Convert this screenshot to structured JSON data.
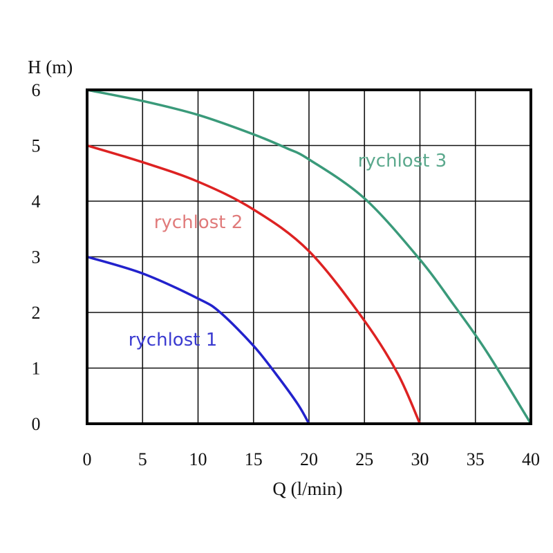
{
  "chart_data": {
    "type": "line",
    "xlabel": "Q (l/min)",
    "ylabel": "H (m)",
    "xlim": [
      0,
      40
    ],
    "ylim": [
      0,
      6
    ],
    "x_ticks": [
      "0",
      "5",
      "10",
      "15",
      "20",
      "25",
      "30",
      "35",
      "40"
    ],
    "y_ticks": [
      "0",
      "1",
      "2",
      "3",
      "4",
      "5",
      "6"
    ],
    "grid": true,
    "legend": "inline labels",
    "series": [
      {
        "name": "rychlost 1",
        "color": "#2222cc",
        "x": [
          0,
          5,
          10,
          12,
          15,
          17,
          19,
          20
        ],
        "y": [
          3,
          2.7,
          2.25,
          2.0,
          1.4,
          0.9,
          0.35,
          0
        ]
      },
      {
        "name": "rychlost 2",
        "color": "#dd2222",
        "x": [
          0,
          5,
          10,
          15,
          20,
          25,
          28,
          30
        ],
        "y": [
          5,
          4.7,
          4.35,
          3.85,
          3.1,
          1.85,
          0.9,
          0
        ]
      },
      {
        "name": "rychlost 3",
        "color": "#3a9a7a",
        "x": [
          0,
          5,
          10,
          15,
          18,
          20,
          25,
          30,
          33,
          36,
          40
        ],
        "y": [
          6,
          5.8,
          5.55,
          5.2,
          4.95,
          4.75,
          4.05,
          2.95,
          2.15,
          1.3,
          0
        ]
      }
    ]
  }
}
